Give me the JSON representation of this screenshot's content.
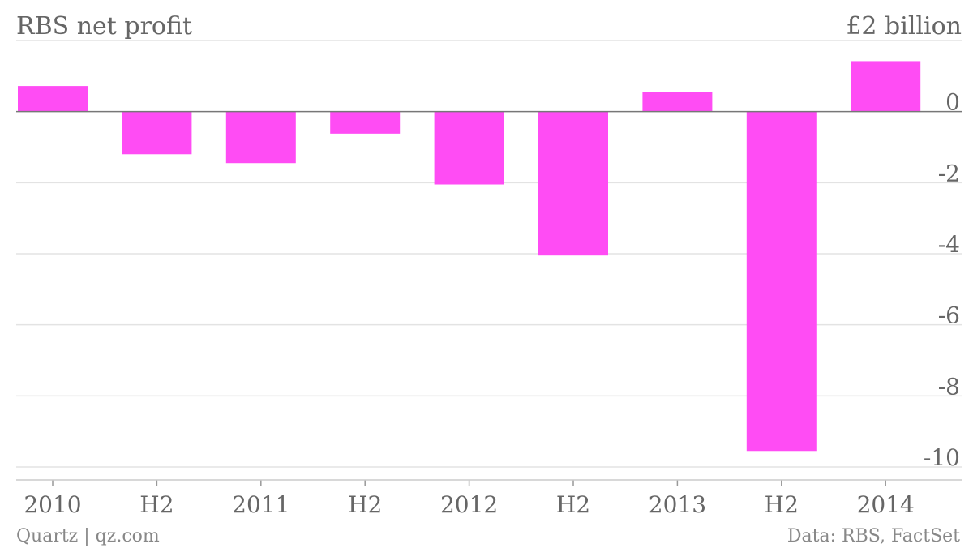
{
  "chart_data": {
    "type": "bar",
    "title": "RBS net profit",
    "y_unit_label": "£2 billion",
    "categories": [
      "2010",
      "H2",
      "2011",
      "H2",
      "2012",
      "H2",
      "2013",
      "H2",
      "2014"
    ],
    "values": [
      0.72,
      -1.2,
      -1.45,
      -0.62,
      -2.05,
      -4.05,
      0.55,
      -9.55,
      1.42
    ],
    "ylim": [
      -10,
      2
    ],
    "yticks": [
      {
        "value": 0,
        "label": "0"
      },
      {
        "value": -2,
        "label": "-2"
      },
      {
        "value": -4,
        "label": "-4"
      },
      {
        "value": -6,
        "label": "-6"
      },
      {
        "value": -8,
        "label": "-8"
      },
      {
        "value": -10,
        "label": "-10"
      }
    ],
    "grid": true,
    "bar_color": "#ff4cf4",
    "grid_color": "#e3e3e3",
    "zero_line_color": "#777777"
  },
  "footer": {
    "source_left": "Quartz | qz.com",
    "source_right": "Data: RBS, FactSet"
  }
}
